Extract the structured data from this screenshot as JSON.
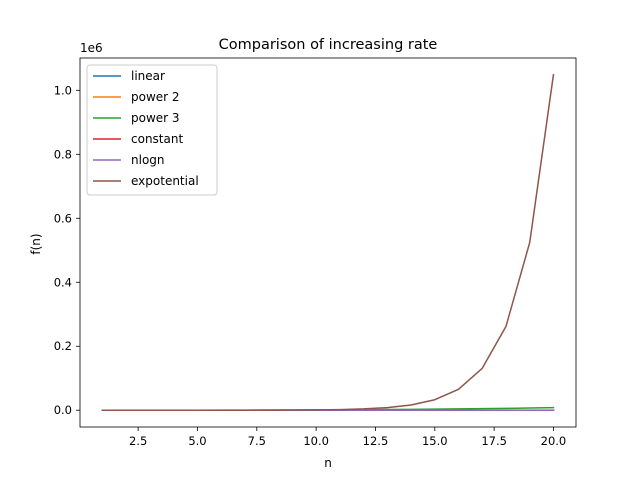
{
  "chart_data": {
    "type": "line",
    "title": "Comparison of increasing rate",
    "xlabel": "n",
    "ylabel": "f(n)",
    "y_scale_label": "1e6",
    "xlim": [
      0.05,
      20.95
    ],
    "ylim": [
      -52428.75,
      1101003.75
    ],
    "xticks": [
      2.5,
      5.0,
      7.5,
      10.0,
      12.5,
      15.0,
      17.5,
      20.0
    ],
    "xtick_labels": [
      "2.5",
      "5.0",
      "7.5",
      "10.0",
      "12.5",
      "15.0",
      "17.5",
      "20.0"
    ],
    "yticks": [
      0,
      200000,
      400000,
      600000,
      800000,
      1000000
    ],
    "ytick_labels": [
      "0.0",
      "0.2",
      "0.4",
      "0.6",
      "0.8",
      "1.0"
    ],
    "grid": false,
    "legend_position": "top-left",
    "x": [
      1,
      2,
      3,
      4,
      5,
      6,
      7,
      8,
      9,
      10,
      11,
      12,
      13,
      14,
      15,
      16,
      17,
      18,
      19,
      20
    ],
    "series": [
      {
        "name": "linear",
        "color": "#1f77b4",
        "values": [
          1,
          2,
          3,
          4,
          5,
          6,
          7,
          8,
          9,
          10,
          11,
          12,
          13,
          14,
          15,
          16,
          17,
          18,
          19,
          20
        ]
      },
      {
        "name": "power 2",
        "color": "#ff7f0e",
        "values": [
          1,
          4,
          9,
          16,
          25,
          36,
          49,
          64,
          81,
          100,
          121,
          144,
          169,
          196,
          225,
          256,
          289,
          324,
          361,
          400
        ]
      },
      {
        "name": "power 3",
        "color": "#2ca02c",
        "values": [
          1,
          8,
          27,
          64,
          125,
          216,
          343,
          512,
          729,
          1000,
          1331,
          1728,
          2197,
          2744,
          3375,
          4096,
          4913,
          5832,
          6859,
          8000
        ]
      },
      {
        "name": "constant",
        "color": "#d62728",
        "values": [
          1,
          1,
          1,
          1,
          1,
          1,
          1,
          1,
          1,
          1,
          1,
          1,
          1,
          1,
          1,
          1,
          1,
          1,
          1,
          1
        ]
      },
      {
        "name": "nlogn",
        "color": "#9467bd",
        "values": [
          0,
          1.39,
          3.3,
          5.55,
          8.05,
          10.75,
          13.62,
          16.64,
          19.78,
          23.03,
          26.38,
          29.82,
          33.34,
          36.95,
          40.62,
          44.36,
          48.16,
          52.03,
          55.94,
          59.91
        ]
      },
      {
        "name": "expotential",
        "color": "#8c564b",
        "values": [
          2,
          4,
          8,
          16,
          32,
          64,
          128,
          256,
          512,
          1024,
          2048,
          4096,
          8192,
          16384,
          32768,
          65536,
          131072,
          262144,
          524288,
          1048576
        ]
      }
    ]
  }
}
